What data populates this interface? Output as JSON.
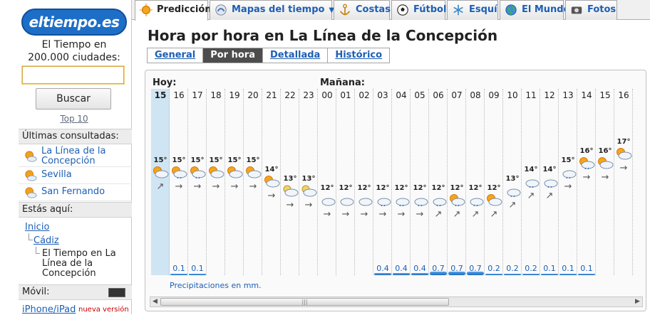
{
  "sidebar": {
    "logo": "eltiempo.es",
    "search_text": "El Tiempo en 200.000 ciudades:",
    "search_placeholder": "",
    "search_button": "Buscar",
    "top10": "Top 10",
    "recent_header": "Últimas consultadas:",
    "recent": [
      "La Línea de la Concepción",
      "Sevilla",
      "San Fernando"
    ],
    "here_header": "Estás aquí:",
    "breadcrumb": [
      "Inicio",
      "Cádiz"
    ],
    "breadcrumb_current": "El Tiempo en La Línea de la Concepción",
    "mobile_header": "Móvil:",
    "mobile_link": "iPhone/iPad",
    "mobile_badge": "nueva versión"
  },
  "tabs": [
    {
      "label": "Predicción",
      "icon": "sun-icon",
      "active": true
    },
    {
      "label": "Mapas del tiempo",
      "icon": "satellite-icon",
      "active": false,
      "dropdown": true
    },
    {
      "label": "Costas",
      "icon": "anchor-icon",
      "active": false
    },
    {
      "label": "Fútbol",
      "icon": "football-icon",
      "active": false
    },
    {
      "label": "Esquí",
      "icon": "snowflake-icon",
      "active": false
    },
    {
      "label": "El Mundo",
      "icon": "globe-icon",
      "active": false
    },
    {
      "label": "Fotos",
      "icon": "camera-icon",
      "active": false
    }
  ],
  "main": {
    "title": "Hora por hora en La Línea de la Concepción",
    "subtabs": [
      {
        "label": "General",
        "active": false
      },
      {
        "label": "Por hora",
        "active": true
      },
      {
        "label": "Detallada",
        "active": false
      },
      {
        "label": "Histórico",
        "active": false
      }
    ],
    "day_labels": {
      "today": "Hoy:",
      "tomorrow": "Mañana:"
    },
    "precip_note": "Precipitaciones en mm.",
    "scroll_thumb": "|||"
  },
  "chart_data": {
    "type": "table",
    "hours": [
      "15",
      "16",
      "17",
      "18",
      "19",
      "20",
      "21",
      "22",
      "23",
      "00",
      "01",
      "02",
      "03",
      "04",
      "05",
      "06",
      "07",
      "08",
      "09",
      "10",
      "11",
      "12",
      "13",
      "14",
      "15",
      "16"
    ],
    "temps": [
      "15°",
      "15°",
      "15°",
      "15°",
      "15°",
      "15°",
      "14°",
      "13°",
      "13°",
      "12°",
      "12°",
      "12°",
      "12°",
      "12°",
      "12°",
      "12°",
      "12°",
      "12°",
      "12°",
      "13°",
      "14°",
      "14°",
      "15°",
      "16°",
      "16°",
      "17°"
    ],
    "sky": [
      "sun-cloud",
      "sun-cloud-rain",
      "sun-cloud-rain",
      "sun-cloud",
      "sun-cloud",
      "sun-cloud",
      "sun-cloud",
      "moon-cloud",
      "moon-cloud",
      "cloud",
      "cloud",
      "cloud",
      "cloud-rain",
      "cloud-rain",
      "cloud-rain",
      "cloud-rain",
      "sun-cloud-rain",
      "cloud-rain",
      "sun-cloud",
      "cloud-rain",
      "cloud-rain",
      "cloud-rain",
      "cloud-rain",
      "sun-cloud-rain",
      "sun-cloud",
      "sun-cloud"
    ],
    "wind": [
      "↗",
      "→",
      "→",
      "→",
      "→",
      "→",
      "→",
      "→",
      "→",
      "→",
      "→",
      "→",
      "→",
      "→",
      "→",
      "↗",
      "↗",
      "↗",
      "↗",
      "↗",
      "↗",
      "↗",
      "→",
      "→",
      "→",
      "→"
    ],
    "precipitation": [
      "",
      "0.1",
      "0.1",
      "",
      "",
      "",
      "",
      "",
      "",
      "",
      "",
      "",
      "0.4",
      "0.4",
      "0.4",
      "0.7",
      "0.7",
      "0.7",
      "0.2",
      "0.2",
      "0.2",
      "0.1",
      "0.1",
      "0.1",
      "",
      ""
    ],
    "precip_unit": "mm"
  }
}
